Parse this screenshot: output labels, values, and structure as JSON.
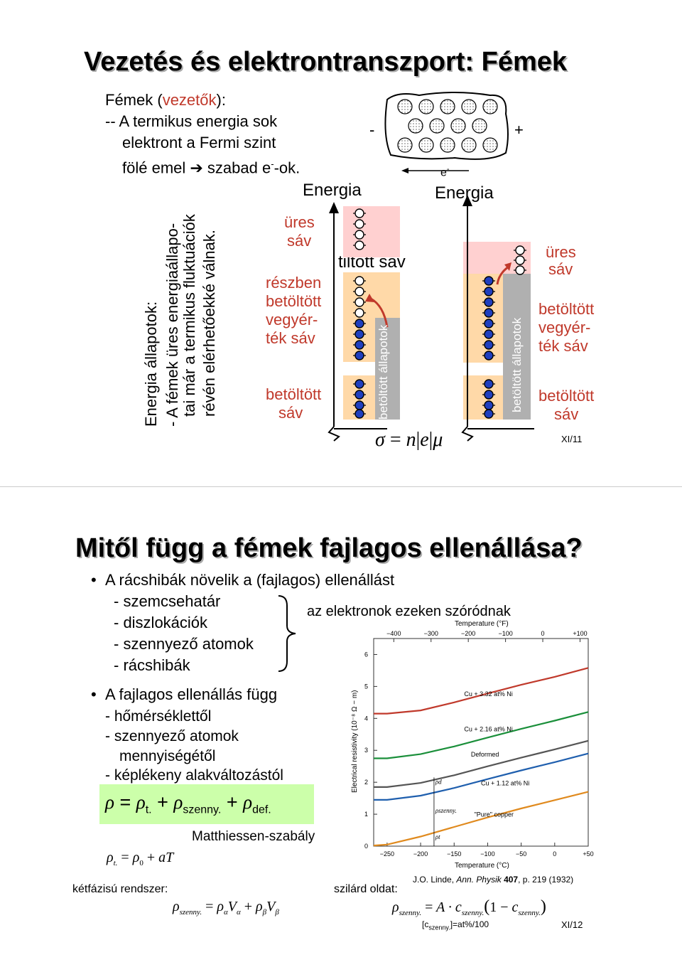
{
  "slide1": {
    "title": "Vezetés és elektrontranszport: Fémek",
    "intro": {
      "line1a": "Fémek (",
      "line1b": "vezetők",
      "line1c": "):",
      "line2": "-- A termikus energia sok",
      "line3": "elektront a Fermi szint",
      "line4": "fölé emel  ➔  szabad e",
      "line4sup": "-",
      "line4end": "-ok."
    },
    "vertical": {
      "l1": "Energia állapotok:",
      "l2": "- A fémek üres energiaállapo-",
      "l3": "tai már a termikus fluktuációk",
      "l4": "révén elérhetőekké válnak."
    },
    "left_diag": {
      "energia": "Energia",
      "ures": "üres",
      "sav": "sáv",
      "reszben": "részben",
      "betoltott": "betöltött",
      "vegyer": "vegyér-",
      "tek_sav": "ték sáv",
      "tiltott": "tiltott sáv",
      "filled_states": "betöltött állapotok"
    },
    "right_diag": {
      "energia": "Energia",
      "ures": "üres",
      "sav": "sáv",
      "betoltott": "betöltött",
      "vegyer": "vegyér-",
      "tek_sav": "ték sáv",
      "filled_states": "betöltött állapotok"
    },
    "lattice": {
      "minus": "-",
      "plus": "+",
      "electron": "e",
      "electron_sup": "-"
    },
    "formula": {
      "sigma": "σ",
      "eq": "=",
      "n": "n",
      "e": "e",
      "mu": "μ"
    },
    "page": "XI/11"
  },
  "slide2": {
    "title": "Mitől függ a fémek fajlagos ellenállása?",
    "b1": "A rácshibák növelik a (fajlagos) ellenállást",
    "items1": [
      "- szemcsehatár",
      "- diszlokációk",
      "- szennyező atomok",
      "- rácshibák"
    ],
    "brace_note": "az elektronok ezeken szóródnak",
    "b2": "A fajlagos ellenállás függ",
    "items2": [
      "- hőmérséklettől",
      "- szennyező atomok",
      "mennyiségétől",
      "- képlékeny alakváltozástól"
    ],
    "rho": {
      "rho": "ρ",
      "eq": " = ",
      "t": "t.",
      "plus": " + ",
      "szenny": "szenny.",
      "def": "def."
    },
    "matthiessen": "Matthiessen-szabály",
    "rho_t": {
      "lhs": "ρ",
      "sub": "t.",
      "eq": "=",
      "rho0": "ρ",
      "zero": "0",
      "plus": "+",
      "aT": "aT"
    },
    "ketfazis": "kétfázisú rendszer:",
    "szilard": "szilárd oldat:",
    "ref_a": "J.O. Linde, ",
    "ref_b": "Ann. Physik",
    "ref_c": " 407",
    "ref_d": ", p. 219 (1932)",
    "c_note_a": "[c",
    "c_note_sub": "szenny.",
    "c_note_b": "]=at%/100",
    "page": "XI/12"
  },
  "chart_data": {
    "type": "line",
    "title": "",
    "xlabel": "Temperature (°C)",
    "ylabel": "Electrical resistivity (10⁻⁸ Ω − m)",
    "top_axis_label": "Temperature (°F)",
    "x_ticks": [
      "−250",
      "−200",
      "−150",
      "−100",
      "−50",
      "0",
      "+50"
    ],
    "top_ticks": [
      "−400",
      "−300",
      "−200",
      "−100",
      "0",
      "+100"
    ],
    "y_ticks": [
      "0",
      "1",
      "2",
      "3",
      "4",
      "5",
      "6"
    ],
    "xlim": [
      -270,
      50
    ],
    "ylim": [
      0,
      6.5
    ],
    "series": [
      {
        "name": "Cu + 3.32 at% Ni",
        "color": "#c0392b",
        "x": [
          -270,
          -250,
          -200,
          -150,
          -100,
          -50,
          0,
          50
        ],
        "y": [
          4.15,
          4.15,
          4.25,
          4.5,
          4.78,
          5.05,
          5.3,
          5.58
        ]
      },
      {
        "name": "Cu + 2.16 at% Ni",
        "color": "#1a8f3a",
        "x": [
          -270,
          -250,
          -200,
          -150,
          -100,
          -50,
          0,
          50
        ],
        "y": [
          2.75,
          2.75,
          2.88,
          3.12,
          3.4,
          3.67,
          3.93,
          4.2
        ]
      },
      {
        "name": "Deformed",
        "color": "#555555",
        "x": [
          -270,
          -250,
          -200,
          -150,
          -100,
          -50,
          0,
          50
        ],
        "y": [
          1.85,
          1.85,
          1.98,
          2.22,
          2.5,
          2.77,
          3.03,
          3.3
        ]
      },
      {
        "name": "Cu + 1.12 at% Ni",
        "color": "#1f5fae",
        "x": [
          -270,
          -250,
          -200,
          -150,
          -100,
          -50,
          0,
          50
        ],
        "y": [
          1.45,
          1.45,
          1.58,
          1.82,
          2.1,
          2.37,
          2.63,
          2.9
        ]
      },
      {
        "name": "\"Pure\" copper",
        "color": "#e08a1e",
        "x": [
          -270,
          -250,
          -200,
          -150,
          -100,
          -50,
          0,
          50
        ],
        "y": [
          0.02,
          0.05,
          0.3,
          0.6,
          0.9,
          1.18,
          1.44,
          1.7
        ]
      }
    ],
    "annotations": [
      "ρd",
      "ρszenny.",
      "ρt"
    ]
  }
}
